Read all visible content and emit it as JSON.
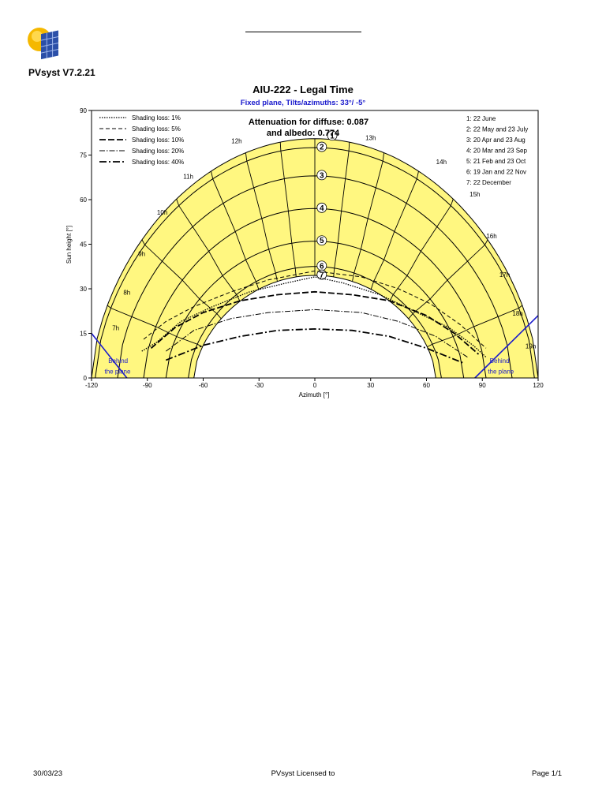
{
  "header": {
    "app_version": "PVsyst V7.2.21"
  },
  "chart_data": {
    "type": "line",
    "title": "AIU-222 - Legal Time",
    "subtitle": "Fixed plane, Tilts/azimuths: 33°/ -5°",
    "xlabel": "Azimuth [°]",
    "ylabel": "Sun height [°]",
    "xlim": [
      -120,
      120
    ],
    "ylim": [
      0,
      90
    ],
    "x_ticks": [
      -120,
      -90,
      -60,
      -30,
      0,
      30,
      60,
      90,
      120
    ],
    "y_ticks": [
      0,
      15,
      30,
      45,
      60,
      75,
      90
    ],
    "attenuation_line1": "Attenuation for diffuse: 0.087",
    "attenuation_line2": "and albedo: 0.774",
    "behind_label": "Behind the plane",
    "shading_legend": [
      {
        "label": "Shading loss: 1%",
        "dash": "1.5,1.5",
        "width": 1.3
      },
      {
        "label": "Shading loss: 5%",
        "dash": "5,3",
        "width": 1
      },
      {
        "label": "Shading loss: 10%",
        "dash": "8,3",
        "width": 1.8
      },
      {
        "label": "Shading loss: 20%",
        "dash": "7,2,1.5,2",
        "width": 1
      },
      {
        "label": "Shading loss: 40%",
        "dash": "9,3,2,3",
        "width": 1.8
      }
    ],
    "date_legend": [
      "1: 22 June",
      "2: 22 May and 23 July",
      "3: 20 Apr and 23 Aug",
      "4: 20 Mar and 23 Sep",
      "5: 21 Feb and 23 Oct",
      "6: 19 Jan and 22 Nov",
      "7: 22 December"
    ],
    "sun_paths": [
      {
        "id": "1",
        "peak": 80.5,
        "half_width": 120
      },
      {
        "id": "2",
        "peak": 77.5,
        "half_width": 118
      },
      {
        "id": "3",
        "peak": 68,
        "half_width": 106
      },
      {
        "id": "4",
        "peak": 57,
        "half_width": 92
      },
      {
        "id": "5",
        "peak": 46,
        "half_width": 80
      },
      {
        "id": "6",
        "peak": 37.5,
        "half_width": 68
      },
      {
        "id": "7",
        "peak": 34.5,
        "half_width": 65
      }
    ],
    "hour_labels": [
      {
        "label": "7h",
        "az": -107,
        "el": 16
      },
      {
        "label": "8h",
        "az": -101,
        "el": 28
      },
      {
        "label": "9h",
        "az": -93,
        "el": 41
      },
      {
        "label": "10h",
        "az": -82,
        "el": 55
      },
      {
        "label": "11h",
        "az": -68,
        "el": 67
      },
      {
        "label": "12h",
        "az": -42,
        "el": 79
      },
      {
        "label": "13h",
        "az": 30,
        "el": 80
      },
      {
        "label": "14h",
        "az": 68,
        "el": 72
      },
      {
        "label": "15h",
        "az": 86,
        "el": 61
      },
      {
        "label": "16h",
        "az": 95,
        "el": 47
      },
      {
        "label": "17h",
        "az": 102,
        "el": 34
      },
      {
        "label": "18h",
        "az": 109,
        "el": 21
      },
      {
        "label": "19h",
        "az": 116,
        "el": 10
      }
    ],
    "shading_curves": [
      {
        "level": 0,
        "pts": [
          [
            -93,
            9
          ],
          [
            -85,
            12
          ],
          [
            -72,
            19
          ],
          [
            -55,
            24
          ],
          [
            -35,
            29
          ],
          [
            -15,
            32
          ],
          [
            0,
            34
          ],
          [
            15,
            32
          ],
          [
            35,
            28
          ],
          [
            55,
            22
          ],
          [
            72,
            17
          ],
          [
            85,
            11
          ],
          [
            92,
            7
          ]
        ]
      },
      {
        "level": 1,
        "pts": [
          [
            -92,
            13
          ],
          [
            -80,
            19
          ],
          [
            -65,
            24
          ],
          [
            -45,
            29
          ],
          [
            -25,
            33
          ],
          [
            0,
            36
          ],
          [
            25,
            34
          ],
          [
            45,
            30
          ],
          [
            62,
            25
          ],
          [
            78,
            18
          ],
          [
            92,
            10
          ]
        ]
      },
      {
        "level": 2,
        "pts": [
          [
            -88,
            10
          ],
          [
            -75,
            17
          ],
          [
            -60,
            22
          ],
          [
            -40,
            26
          ],
          [
            -20,
            28
          ],
          [
            0,
            29
          ],
          [
            20,
            28
          ],
          [
            40,
            26
          ],
          [
            60,
            21
          ],
          [
            75,
            15
          ],
          [
            88,
            8
          ]
        ]
      },
      {
        "level": 3,
        "pts": [
          [
            -80,
            9
          ],
          [
            -65,
            16
          ],
          [
            -45,
            20
          ],
          [
            -25,
            22
          ],
          [
            0,
            23
          ],
          [
            25,
            22
          ],
          [
            45,
            19
          ],
          [
            65,
            14
          ],
          [
            82,
            7
          ]
        ]
      },
      {
        "level": 4,
        "pts": [
          [
            -80,
            6
          ],
          [
            -60,
            11
          ],
          [
            -40,
            14
          ],
          [
            -20,
            16
          ],
          [
            0,
            16.5
          ],
          [
            20,
            16
          ],
          [
            40,
            14
          ],
          [
            60,
            10
          ],
          [
            80,
            5
          ]
        ]
      }
    ]
  },
  "footer": {
    "date": "30/03/23",
    "license": "PVsyst Licensed to",
    "page": "Page 1/1"
  }
}
